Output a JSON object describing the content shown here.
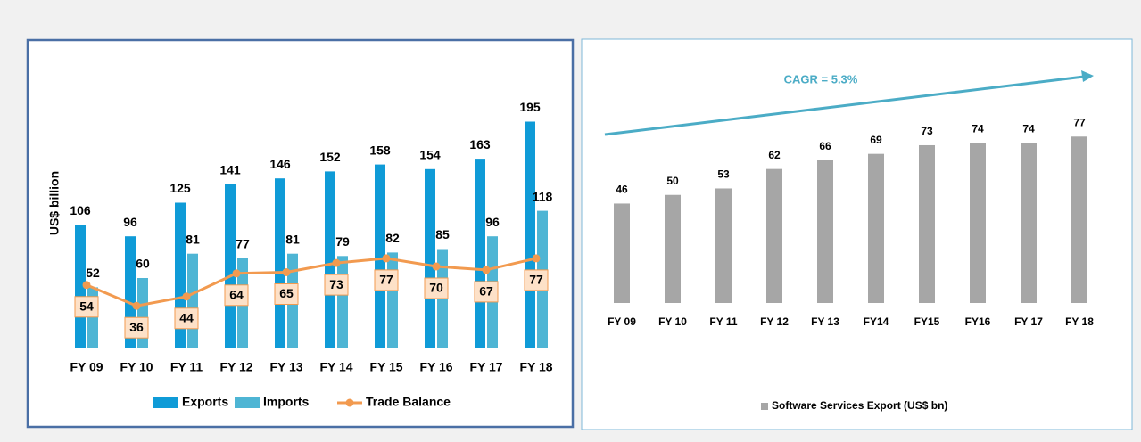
{
  "chart_data": [
    {
      "type": "bar",
      "y_label": "US$ billion",
      "categories": [
        "FY 09",
        "FY 10",
        "FY 11",
        "FY 12",
        "FY 13",
        "FY 14",
        "FY 15",
        "FY 16",
        "FY 17",
        "FY 18"
      ],
      "series": [
        {
          "name": "Exports",
          "color": "#0f9bd7",
          "values": [
            106,
            96,
            125,
            141,
            146,
            152,
            158,
            154,
            163,
            195
          ]
        },
        {
          "name": "Imports",
          "color": "#4eb5d4",
          "values": [
            52,
            60,
            81,
            77,
            81,
            79,
            82,
            85,
            96,
            118
          ]
        },
        {
          "name": "Trade Balance",
          "type": "line",
          "color": "#f29a4f",
          "values": [
            54,
            36,
            44,
            64,
            65,
            73,
            77,
            70,
            67,
            77
          ]
        }
      ],
      "ylim": [
        0,
        200
      ]
    },
    {
      "type": "bar",
      "annotation": "CAGR = 5.3%",
      "categories": [
        "FY 09",
        "FY 10",
        "FY 11",
        "FY 12",
        "FY 13",
        "FY14",
        "FY15",
        "FY16",
        "FY 17",
        "FY 18"
      ],
      "series": [
        {
          "name": "Software Services Export (US$ bn)",
          "color": "#a6a6a6",
          "values": [
            46,
            50,
            53,
            62,
            66,
            69,
            73,
            74,
            74,
            77
          ]
        }
      ],
      "ylim": [
        0,
        80
      ]
    }
  ]
}
